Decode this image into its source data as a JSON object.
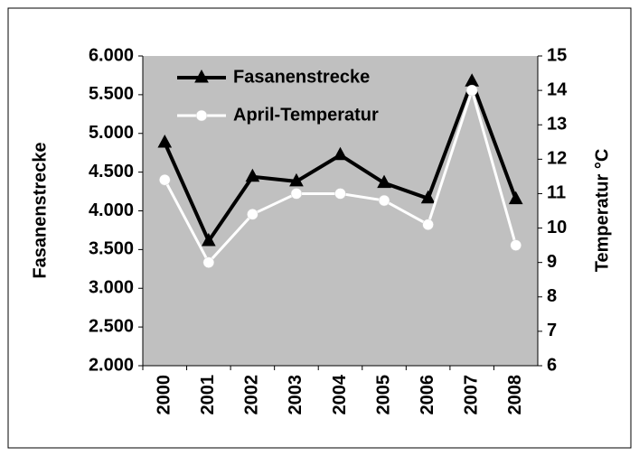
{
  "chart_data": {
    "type": "line",
    "categories": [
      "2000",
      "2001",
      "2002",
      "2003",
      "2004",
      "2005",
      "2006",
      "2007",
      "2008"
    ],
    "series": [
      {
        "name": "Fasanenstrecke",
        "color": "#000000",
        "marker": "triangle",
        "values": [
          4880,
          3610,
          4440,
          4380,
          4720,
          4360,
          4160,
          5670,
          4150
        ]
      },
      {
        "name": "April-Temperatur",
        "color": "#ffffff",
        "marker": "circle",
        "axis": "y2",
        "values": [
          11.4,
          9.0,
          10.4,
          11.0,
          11.0,
          10.8,
          10.1,
          14.0,
          9.5
        ]
      }
    ],
    "ylabel": "Fasanenstrecke",
    "y2label": "Temperatur °C",
    "ylim": [
      2000,
      6000
    ],
    "yticks": [
      {
        "value": 2000,
        "label": "2.000"
      },
      {
        "value": 2500,
        "label": "2.500"
      },
      {
        "value": 3000,
        "label": "3.000"
      },
      {
        "value": 3500,
        "label": "3.500"
      },
      {
        "value": 4000,
        "label": "4.000"
      },
      {
        "value": 4500,
        "label": "4.500"
      },
      {
        "value": 5000,
        "label": "5.000"
      },
      {
        "value": 5500,
        "label": "5.500"
      },
      {
        "value": 6000,
        "label": "6.000"
      }
    ],
    "y2lim": [
      6,
      15
    ],
    "y2ticks": [
      6,
      7,
      8,
      9,
      10,
      11,
      12,
      13,
      14,
      15
    ],
    "legend": "top-left",
    "plot_background": "#c0c0c0"
  }
}
